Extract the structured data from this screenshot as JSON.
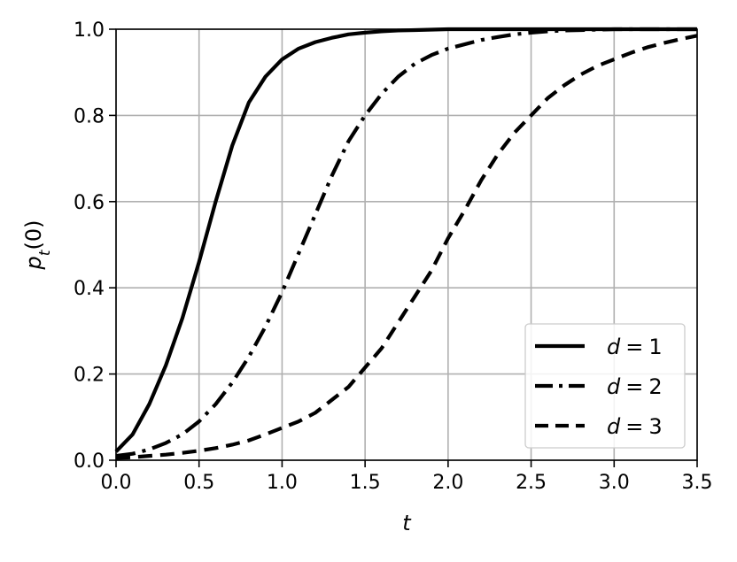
{
  "chart_data": {
    "type": "line",
    "title": "",
    "xlabel": "t",
    "ylabel": {
      "main": "p",
      "sub": "t",
      "suffix": "(0)"
    },
    "xlim": [
      0.0,
      3.5
    ],
    "ylim": [
      0.0,
      1.0
    ],
    "grid": true,
    "legend_position": "bottom-right",
    "x_ticks": [
      "0.0",
      "0.5",
      "1.0",
      "1.5",
      "2.0",
      "2.5",
      "3.0",
      "3.5"
    ],
    "y_ticks": [
      "0.0",
      "0.2",
      "0.4",
      "0.6",
      "0.8",
      "1.0"
    ],
    "x": [
      0.0,
      0.1,
      0.2,
      0.3,
      0.4,
      0.5,
      0.6,
      0.7,
      0.8,
      0.9,
      1.0,
      1.1,
      1.2,
      1.3,
      1.4,
      1.5,
      1.6,
      1.7,
      1.8,
      1.9,
      2.0,
      2.1,
      2.2,
      2.3,
      2.4,
      2.5,
      2.6,
      2.7,
      2.8,
      2.9,
      3.0,
      3.1,
      3.2,
      3.3,
      3.4,
      3.5
    ],
    "series": [
      {
        "legend_var": "d",
        "legend_op": "=",
        "legend_value": "1",
        "dash": "solid",
        "color": "#000000",
        "values": [
          0.02,
          0.06,
          0.13,
          0.22,
          0.33,
          0.46,
          0.6,
          0.73,
          0.83,
          0.89,
          0.93,
          0.955,
          0.97,
          0.98,
          0.988,
          0.992,
          0.995,
          0.997,
          0.998,
          0.999,
          1.0,
          1.0,
          1.0,
          1.0,
          1.0,
          1.0,
          1.0,
          1.0,
          1.0,
          1.0,
          1.0,
          1.0,
          1.0,
          1.0,
          1.0,
          1.0
        ]
      },
      {
        "legend_var": "d",
        "legend_op": "=",
        "legend_value": "2",
        "dash": "dashdot",
        "color": "#000000",
        "values": [
          0.01,
          0.015,
          0.025,
          0.04,
          0.06,
          0.09,
          0.13,
          0.18,
          0.24,
          0.31,
          0.39,
          0.48,
          0.57,
          0.66,
          0.74,
          0.8,
          0.85,
          0.89,
          0.92,
          0.94,
          0.955,
          0.965,
          0.975,
          0.982,
          0.988,
          0.992,
          0.995,
          0.997,
          0.998,
          0.999,
          1.0,
          1.0,
          1.0,
          1.0,
          1.0,
          1.0
        ]
      },
      {
        "legend_var": "d",
        "legend_op": "=",
        "legend_value": "3",
        "dash": "dashed",
        "color": "#000000",
        "values": [
          0.005,
          0.007,
          0.01,
          0.013,
          0.017,
          0.022,
          0.028,
          0.036,
          0.046,
          0.06,
          0.075,
          0.09,
          0.11,
          0.14,
          0.17,
          0.215,
          0.26,
          0.32,
          0.38,
          0.44,
          0.515,
          0.58,
          0.65,
          0.71,
          0.76,
          0.8,
          0.84,
          0.87,
          0.895,
          0.915,
          0.93,
          0.945,
          0.958,
          0.968,
          0.977,
          0.985
        ]
      }
    ]
  }
}
